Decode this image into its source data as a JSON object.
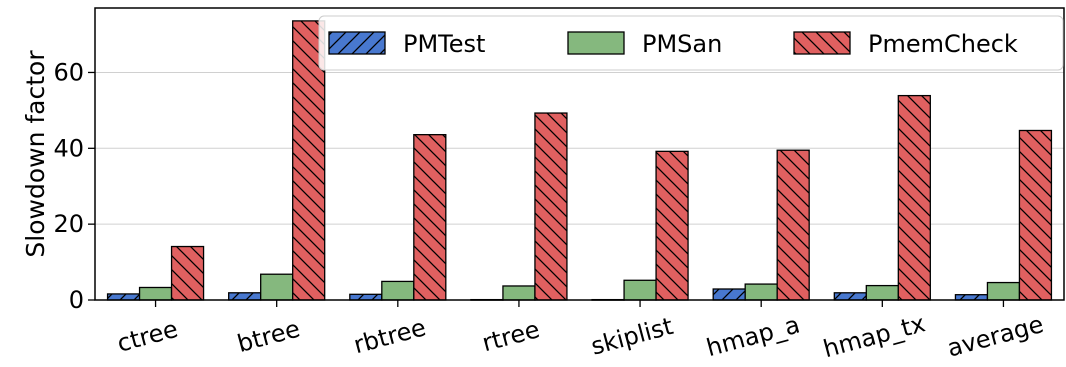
{
  "chart_data": {
    "type": "bar",
    "title": "",
    "xlabel": "",
    "ylabel": "Slowdown factor",
    "categories": [
      "ctree",
      "btree",
      "rbtree",
      "rtree",
      "skiplist",
      "hmap_a",
      "hmap_tx",
      "average"
    ],
    "series": [
      {
        "name": "PMTest",
        "values": [
          1.6,
          1.9,
          1.5,
          0.1,
          0.1,
          2.9,
          1.9,
          1.4
        ],
        "color": "#4878CF",
        "hatch": "forward-diagonal"
      },
      {
        "name": "PMSan",
        "values": [
          3.3,
          6.8,
          4.9,
          3.7,
          5.2,
          4.2,
          3.8,
          4.6
        ],
        "color": "#6ACC65",
        "hatch": "none"
      },
      {
        "name": "PmemCheck",
        "values": [
          14.1,
          73.6,
          43.6,
          49.3,
          39.2,
          39.5,
          53.9,
          44.7
        ],
        "color": "#E05A5A",
        "hatch": "back-diagonal"
      }
    ],
    "ylim": [
      0,
      77
    ],
    "yticks": [
      0,
      20,
      40,
      60
    ],
    "grid": "horizontal",
    "legend": "top-right",
    "xtick_rotation": -15
  }
}
